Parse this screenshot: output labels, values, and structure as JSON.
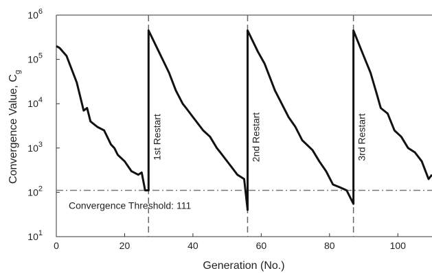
{
  "chart_data": {
    "type": "line",
    "xlabel": "Generation (No.)",
    "ylabel": "Convergence Value, C",
    "ylabel_sub": "g",
    "x": [
      0,
      1,
      3,
      6,
      8,
      9,
      10,
      12,
      14,
      16,
      17,
      18,
      20,
      22,
      24,
      25,
      26,
      27,
      27,
      30,
      33,
      35,
      37,
      38,
      40,
      43,
      45,
      47,
      48,
      51,
      53,
      55,
      56,
      56,
      59,
      61,
      64,
      66,
      68,
      70,
      72,
      75,
      77,
      79,
      81,
      83,
      85,
      87,
      87,
      90,
      92,
      94,
      95,
      97,
      99,
      101,
      103,
      105,
      107,
      109,
      110
    ],
    "values": [
      200000,
      180000,
      120000,
      30000,
      7000,
      8000,
      4000,
      3000,
      2500,
      1200,
      1000,
      700,
      500,
      300,
      250,
      280,
      111,
      111,
      450000,
      150000,
      50000,
      20000,
      10000,
      8000,
      5000,
      2500,
      1800,
      1000,
      800,
      400,
      250,
      200,
      40,
      450000,
      150000,
      80000,
      20000,
      10000,
      5000,
      3000,
      1500,
      900,
      500,
      300,
      150,
      130,
      111,
      55,
      450000,
      120000,
      50000,
      15000,
      8000,
      6000,
      2500,
      1800,
      1000,
      800,
      500,
      200,
      250
    ],
    "color": "#111111",
    "xlim": [
      0,
      110
    ],
    "xticks": [
      0,
      20,
      40,
      60,
      80,
      100
    ],
    "ylim": [
      10,
      1000000
    ],
    "log_y": true,
    "yticks": [
      {
        "value": 10,
        "label": "10",
        "sup": "1"
      },
      {
        "value": 100,
        "label": "10",
        "sup": "2"
      },
      {
        "value": 1000,
        "label": "10",
        "sup": "3"
      },
      {
        "value": 10000,
        "label": "10",
        "sup": "4"
      },
      {
        "value": 100000,
        "label": "10",
        "sup": "5"
      },
      {
        "value": 1000000,
        "label": "10",
        "sup": "6"
      }
    ],
    "threshold": {
      "value": 111,
      "label": "Convergence Threshold: 111"
    },
    "restarts": [
      {
        "x": 27,
        "label": "1st Restart"
      },
      {
        "x": 56,
        "label": "2nd Restart"
      },
      {
        "x": 87,
        "label": "3rd Restart"
      }
    ]
  }
}
